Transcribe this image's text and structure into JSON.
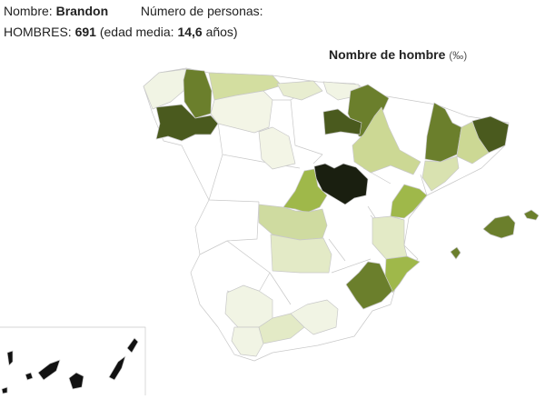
{
  "header": {
    "name_label": "Nombre:",
    "name_value": "Brandon",
    "count_label": "Número de personas:",
    "men_label": "HOMBRES:",
    "men_value": "691",
    "age_open": "(edad media:",
    "age_value": "14,6",
    "age_close": "años)"
  },
  "map": {
    "title": "Nombre de hombre",
    "unit": "(‰)",
    "colors": {
      "none": "#ffffff",
      "very_light": "#f1f4e4",
      "light": "#e3eac6",
      "medium_light": "#ccd894",
      "medium": "#9fb84a",
      "dark": "#6b7f2c",
      "darker": "#4a5a1e",
      "darkest": "#1a1f10"
    }
  }
}
